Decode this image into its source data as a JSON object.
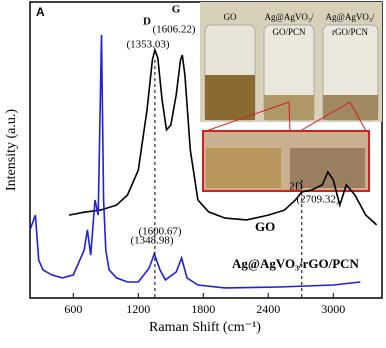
{
  "chart_data": {
    "type": "line",
    "xlabel": "Raman Shift (cm⁻¹)",
    "ylabel": "Intensity (a.u.)",
    "xlim": [
      200,
      3450
    ],
    "ylim": [
      0,
      100
    ],
    "xticks": [
      600,
      1200,
      1800,
      2400,
      3000
    ],
    "series": [
      {
        "name": "GO",
        "color": "#000000",
        "x": [
          560,
          700,
          850,
          1000,
          1100,
          1200,
          1280,
          1330,
          1353,
          1380,
          1420,
          1460,
          1500,
          1550,
          1590,
          1606,
          1630,
          1680,
          1750,
          1850,
          2000,
          2200,
          2400,
          2550,
          2650,
          2709,
          2800,
          2900,
          2950,
          3000,
          3060,
          3120,
          3200,
          3300,
          3400
        ],
        "values": [
          28,
          29,
          29.7,
          31.4,
          34.8,
          43.2,
          63.5,
          80.4,
          83.8,
          81.1,
          66.9,
          56.8,
          58.4,
          68.6,
          80.4,
          82.1,
          75.3,
          50,
          33.1,
          29.1,
          27,
          26.4,
          28,
          29.7,
          33.1,
          35.8,
          36.5,
          38.2,
          42.6,
          39.9,
          31.4,
          38.2,
          34.8,
          28,
          24.7
        ]
      },
      {
        "name": "Ag@AgVO₃/rGO/PCN",
        "color": "#1f1fe0",
        "x": [
          200,
          250,
          280,
          320,
          400,
          500,
          600,
          700,
          730,
          760,
          800,
          830,
          860,
          880,
          900,
          930,
          1000,
          1100,
          1200,
          1300,
          1348,
          1400,
          1450,
          1550,
          1600,
          1650,
          1750,
          2000,
          2500,
          3000,
          3250
        ],
        "values": [
          23,
          28,
          12.8,
          9.5,
          7.8,
          6.8,
          7.8,
          16.2,
          23,
          14.5,
          33.1,
          28,
          88.9,
          33.1,
          16.2,
          9.5,
          6.8,
          5.4,
          5.4,
          10.1,
          14.9,
          9.5,
          6.1,
          8.8,
          13.5,
          6.8,
          4.4,
          3.4,
          3.7,
          4.4,
          5.4
        ]
      }
    ],
    "panel_label": "A",
    "annotations": [
      "D",
      "G",
      "(1353.03)",
      "(1606.22)",
      "2D",
      "(2709.32)",
      "(1348.98)",
      "(1600.67)"
    ],
    "peak_lines": [
      1353.03,
      2709.32
    ],
    "inset_labels": [
      "GO",
      "Ag@AgVO₃/",
      "GO/PCN",
      "Ag@AgVO₃/",
      "rGO/PCN"
    ]
  }
}
